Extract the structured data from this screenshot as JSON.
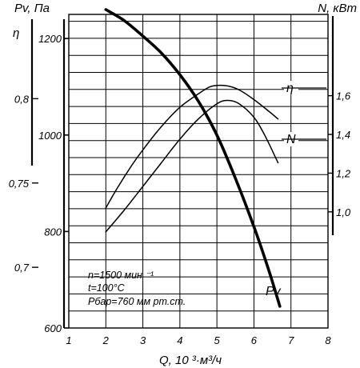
{
  "chart_data": {
    "type": "line",
    "axes": {
      "pressure": {
        "title": "Pv, Па",
        "ticks": [
          600,
          800,
          1000,
          1200
        ],
        "range": [
          600,
          1250
        ]
      },
      "efficiency": {
        "title": "η",
        "ticks": [
          "0,7",
          "0,75",
          "0,8"
        ],
        "tick_values": [
          0.7,
          0.75,
          0.8
        ],
        "range": [
          0.664,
          0.85
        ]
      },
      "power": {
        "title": "N, кВт",
        "ticks": [
          "1,0",
          "1,2",
          "1,4",
          "1,6"
        ],
        "tick_values": [
          1.0,
          1.2,
          1.4,
          1.6
        ],
        "range": [
          0.4,
          2.02
        ]
      },
      "flow": {
        "title": "Q, 10 ³·м³/ч",
        "ticks": [
          "1",
          "2",
          "3",
          "4",
          "5",
          "6",
          "7",
          "8"
        ],
        "tick_values": [
          1,
          2,
          3,
          4,
          5,
          6,
          7,
          8
        ],
        "range": [
          1,
          8
        ]
      }
    },
    "grid": true,
    "series": [
      {
        "name": "η",
        "axis": "efficiency",
        "stroke": "thin",
        "x": [
          2.0,
          2.5,
          3.0,
          3.5,
          4.0,
          4.5,
          5.0,
          5.3,
          5.6,
          6.0,
          6.3,
          6.65
        ],
        "y": [
          0.721,
          0.734,
          0.748,
          0.762,
          0.776,
          0.788,
          0.797,
          0.799,
          0.797,
          0.789,
          0.778,
          0.762
        ]
      },
      {
        "name": "N",
        "axis": "power",
        "stroke": "thin",
        "x": [
          2.0,
          2.3,
          2.7,
          3.0,
          3.5,
          4.0,
          4.5,
          4.8,
          5.0,
          5.3,
          5.6,
          6.0,
          6.4,
          6.65
        ],
        "y": [
          1.02,
          1.12,
          1.24,
          1.32,
          1.44,
          1.54,
          1.61,
          1.645,
          1.653,
          1.65,
          1.63,
          1.58,
          1.52,
          1.48
        ]
      },
      {
        "name": "Pv",
        "axis": "pressure",
        "stroke": "bold",
        "x": [
          2.0,
          2.5,
          3.0,
          3.5,
          4.0,
          4.5,
          5.0,
          5.5,
          6.0,
          6.4,
          6.7
        ],
        "y": [
          1260,
          1237,
          1205,
          1170,
          1125,
          1070,
          1000,
          910,
          810,
          720,
          645
        ]
      }
    ],
    "annotations": [
      "n=1500 мин ⁻¹",
      "t=100°C",
      "Рбар=760 мм рт.ст."
    ]
  }
}
